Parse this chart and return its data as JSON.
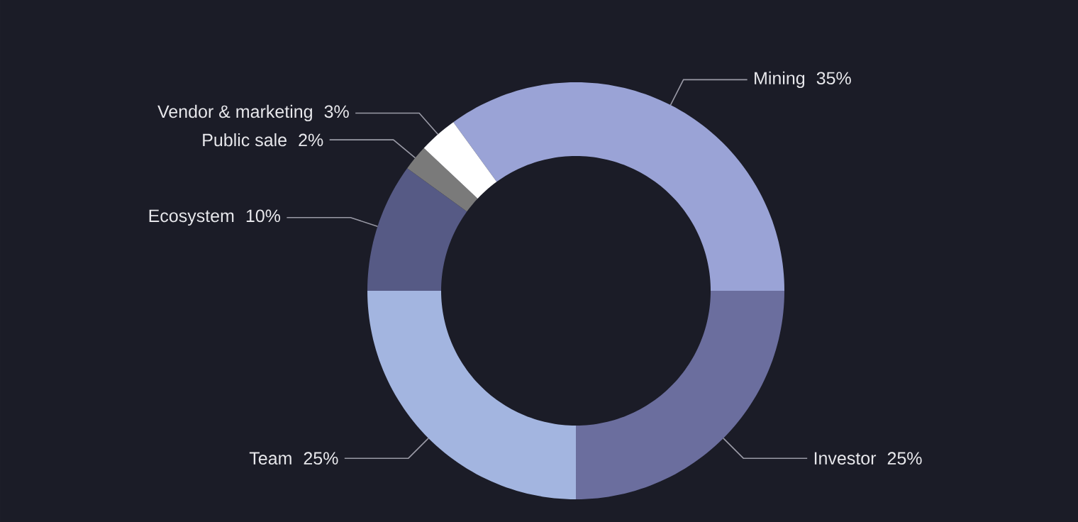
{
  "chart_data": {
    "type": "donut",
    "categories": [
      "Mining",
      "Investor",
      "Team",
      "Ecosystem",
      "Public sale",
      "Vendor & marketing"
    ],
    "values": [
      35,
      25,
      25,
      10,
      2,
      3
    ],
    "value_labels": [
      "35%",
      "25%",
      "25%",
      "10%",
      "2%",
      "3%"
    ],
    "colors": [
      "#9aa3d6",
      "#6b6e9e",
      "#a3b5e0",
      "#565a85",
      "#7a7a7a",
      "#ffffff"
    ]
  }
}
